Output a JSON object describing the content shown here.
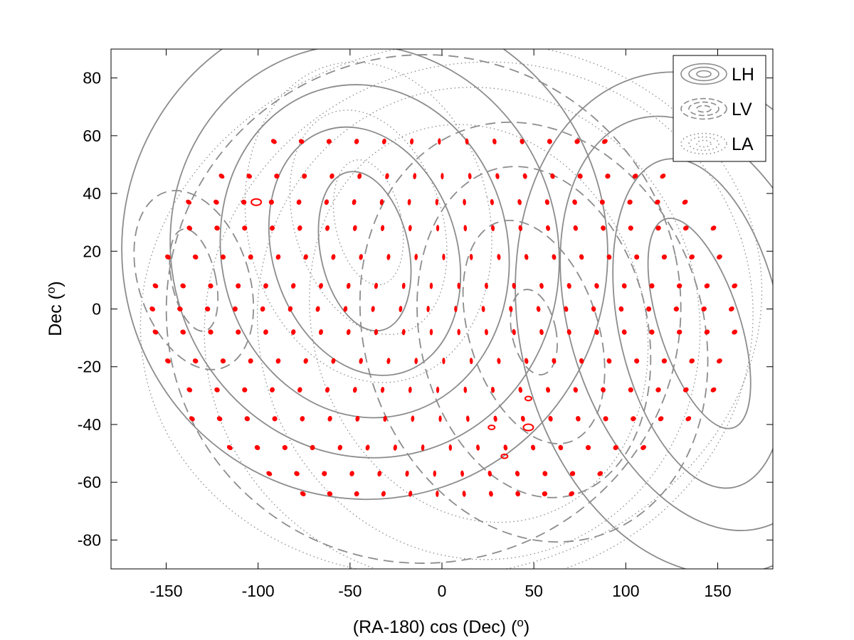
{
  "chart_data": {
    "type": "scatter",
    "title": "",
    "xlabel": "(RA-180) cos (Dec) (",
    "xlabel_sup": "o",
    "xlabel_tail": ")",
    "ylabel": "Dec (",
    "ylabel_sup": "o",
    "ylabel_tail": ")",
    "xlim": [
      -180,
      180
    ],
    "ylim": [
      -90,
      90
    ],
    "xticks": [
      -150,
      -100,
      -50,
      0,
      50,
      100,
      150
    ],
    "yticks": [
      -80,
      -60,
      -40,
      -20,
      0,
      20,
      40,
      60,
      80
    ],
    "grid": false,
    "legend_position": "top-right",
    "colors": {
      "contour": "#8c8c8c",
      "markers": "#ff0000",
      "axis": "#000000"
    },
    "series": [
      {
        "name": "LH",
        "style": "solid",
        "contours": [
          {
            "center": [
              -42,
              20
            ],
            "rx": 24,
            "ry": 28,
            "note": ""
          },
          {
            "center": [
              -42,
              20
            ],
            "rx": 50,
            "ry": 44
          },
          {
            "center": [
              -42,
              20
            ],
            "rx": 78,
            "ry": 58
          },
          {
            "center": [
              -42,
              20
            ],
            "rx": 105,
            "ry": 72
          },
          {
            "center": [
              -42,
              20
            ],
            "rx": 132,
            "ry": 86
          },
          {
            "center": [
              140,
              -5
            ],
            "rx": 22,
            "ry": 38
          },
          {
            "center": [
              140,
              -5
            ],
            "rx": 44,
            "ry": 58
          },
          {
            "center": [
              140,
              -5
            ],
            "rx": 70,
            "ry": 74
          },
          {
            "center": [
              140,
              -5
            ],
            "rx": 98,
            "ry": 88
          }
        ]
      },
      {
        "name": "LV",
        "style": "dashed",
        "contours": [
          {
            "center": [
              -135,
              10
            ],
            "rx": 12,
            "ry": 18
          },
          {
            "center": [
              -135,
              10
            ],
            "rx": 30,
            "ry": 32
          },
          {
            "center": [
              50,
              -8
            ],
            "rx": 12,
            "ry": 15
          },
          {
            "center": [
              50,
              -8
            ],
            "rx": 35,
            "ry": 40
          },
          {
            "center": [
              50,
              -8
            ],
            "rx": 62,
            "ry": 58
          },
          {
            "center": [
              50,
              -8
            ],
            "rx": 92,
            "ry": 74
          },
          {
            "center": [
              -10,
              0
            ],
            "rx": 140,
            "ry": 88
          }
        ]
      },
      {
        "name": "LA",
        "style": "dotted",
        "contours": [
          {
            "center": [
              -40,
              30
            ],
            "rx": 18,
            "ry": 22
          },
          {
            "center": [
              -40,
              30
            ],
            "rx": 40,
            "ry": 40
          },
          {
            "center": [
              -40,
              30
            ],
            "rx": 66,
            "ry": 56
          },
          {
            "center": [
              20,
              -5
            ],
            "rx": 90,
            "ry": 70
          },
          {
            "center": [
              20,
              -5
            ],
            "rx": 120,
            "ry": 82
          },
          {
            "center": [
              20,
              -5
            ],
            "rx": 150,
            "ry": 90
          },
          {
            "center": [
              5,
              0
            ],
            "rx": 170,
            "ry": 92
          }
        ]
      }
    ],
    "markers": {
      "color": "#ff0000",
      "dec_rows": [
        58,
        46,
        37,
        28,
        18,
        8,
        0,
        -8,
        -18,
        -28,
        -38,
        -48,
        -57,
        -64
      ],
      "ra_step_deg": 15,
      "notable": [
        {
          "x": -101,
          "y": 37,
          "size": "large"
        },
        {
          "x": 47,
          "y": -41,
          "size": "large"
        },
        {
          "x": 27,
          "y": -41,
          "size": "medium"
        },
        {
          "x": 47,
          "y": -31,
          "size": "medium"
        },
        {
          "x": 34,
          "y": -51,
          "size": "medium"
        }
      ]
    }
  }
}
